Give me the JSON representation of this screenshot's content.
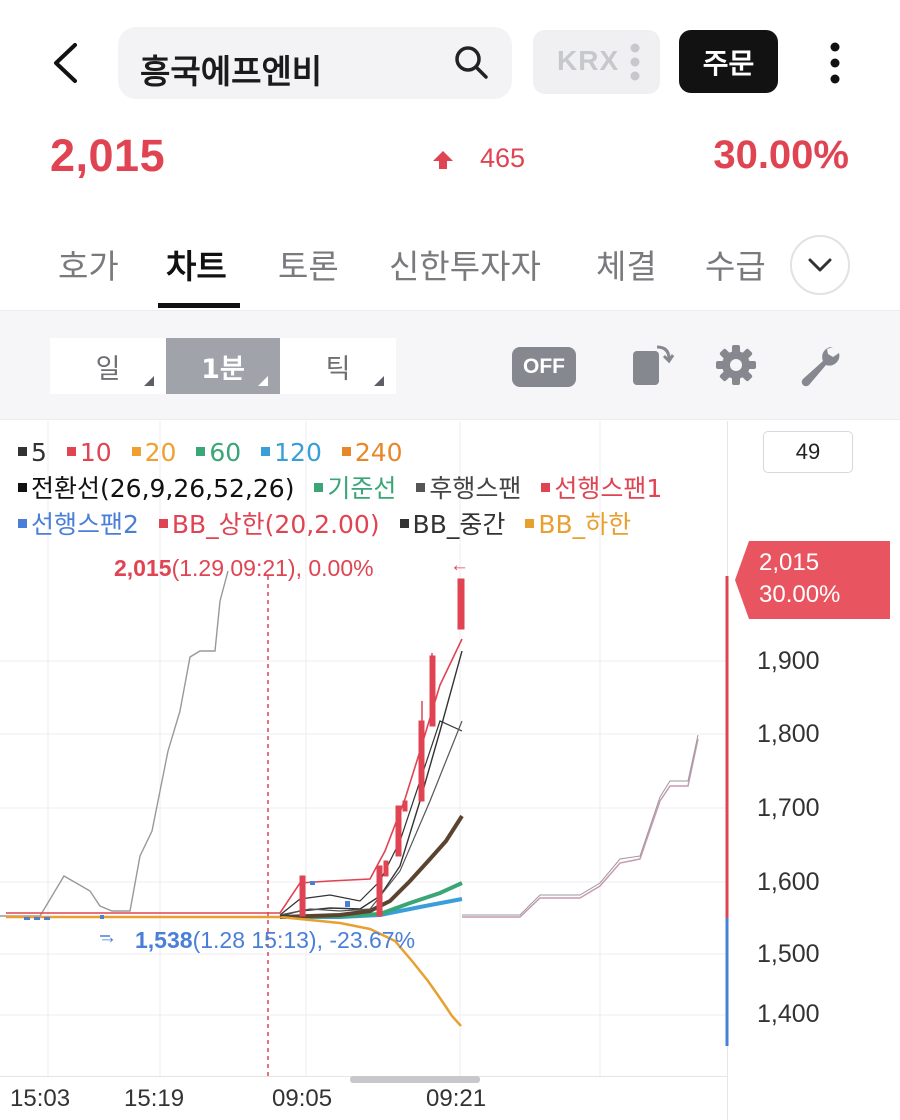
{
  "header": {
    "search_value": "흥국에프엔비",
    "exchange_label": "KRX",
    "order_label": "주문"
  },
  "quote": {
    "price": "2,015",
    "change": "465",
    "change_pct": "30.00%",
    "direction": "up",
    "up_color": "#e04452"
  },
  "tabs": [
    {
      "label": "호가",
      "active": false
    },
    {
      "label": "차트",
      "active": true
    },
    {
      "label": "토론",
      "active": false
    },
    {
      "label": "신한투자자",
      "active": false
    },
    {
      "label": "체결",
      "active": false
    },
    {
      "label": "수급",
      "active": false
    }
  ],
  "toolbar": {
    "periods": [
      {
        "label": "일",
        "selected": false
      },
      {
        "label": "1분",
        "selected": true
      },
      {
        "label": "틱",
        "selected": false
      }
    ],
    "off_label": "OFF",
    "icons": [
      "rotate-screen-icon",
      "gear-icon",
      "wrench-icon"
    ]
  },
  "legend": {
    "ma": [
      {
        "label": "5",
        "color": "#333333"
      },
      {
        "label": "10",
        "color": "#e04452"
      },
      {
        "label": "20",
        "color": "#f0a030"
      },
      {
        "label": "60",
        "color": "#3aa676"
      },
      {
        "label": "120",
        "color": "#3a9ed8"
      },
      {
        "label": "240",
        "color": "#e8862a"
      }
    ],
    "indicators": [
      {
        "label": "전환선(26,9,26,52,26)",
        "color": "#111111"
      },
      {
        "label": "기준선",
        "color": "#3aa676"
      },
      {
        "label": "후행스팬",
        "color": "#555555"
      },
      {
        "label": "선행스팬1",
        "color": "#e04452"
      },
      {
        "label": "선행스팬2",
        "color": "#4a7fd8"
      },
      {
        "label": "BB_상한(20,2.00)",
        "color": "#e04452"
      },
      {
        "label": "BB_중간",
        "color": "#333333"
      },
      {
        "label": "BB_하한",
        "color": "#e8a030"
      }
    ]
  },
  "chart": {
    "count": "49",
    "last_price": "2,015",
    "last_pct": "30.00%",
    "high_label_value": "2,015",
    "high_label_detail": "(1.29 09:21), 0.00%",
    "low_label_value": "1,538",
    "low_label_detail": "(1.28 15:13), -23.67%",
    "y_ticks": [
      "1,900",
      "1,800",
      "1,700",
      "1,600",
      "1,500",
      "1,400"
    ],
    "x_ticks": [
      "15:03",
      "15:19",
      "09:05",
      "09:21"
    ]
  },
  "chart_data": {
    "type": "line",
    "x": [
      "15:03",
      "15:19",
      "09:05",
      "09:21"
    ],
    "ylim": [
      1360,
      2040
    ],
    "series": [
      {
        "name": "5",
        "values": [
          1550,
          1550,
          1560,
          2015
        ]
      },
      {
        "name": "BB_하한",
        "values": [
          1550,
          1550,
          1550,
          1390
        ]
      }
    ]
  }
}
